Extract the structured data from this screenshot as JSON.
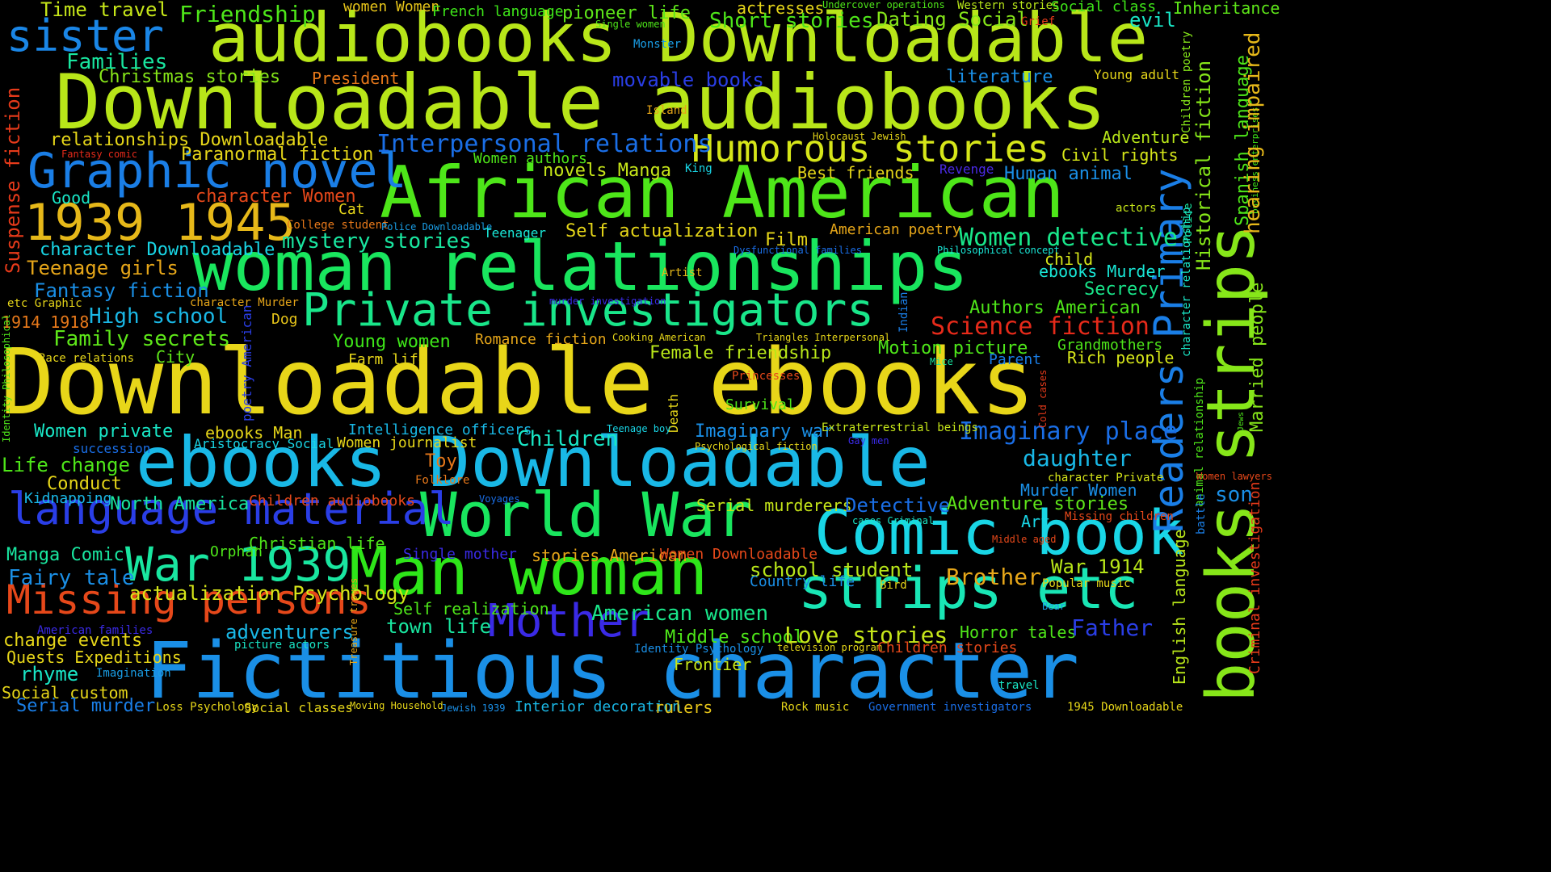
{
  "words": [
    {
      "text": "Downloadable ebooks",
      "color": "#e8d619"
    },
    {
      "text": "Downloadable audiobooks",
      "color": "#b8e619"
    },
    {
      "text": "audiobooks Downloadable",
      "color": "#b8e619"
    },
    {
      "text": "Fictitious character",
      "color": "#1a8fe6"
    },
    {
      "text": "ebooks Downloadable",
      "color": "#19b8e6"
    },
    {
      "text": "African American",
      "color": "#4ee619"
    },
    {
      "text": "woman relationships",
      "color": "#19e65e"
    },
    {
      "text": "Man woman",
      "color": "#2ee619"
    },
    {
      "text": "Comic book",
      "color": "#19d6e6"
    },
    {
      "text": "World War",
      "color": "#19e65e"
    },
    {
      "text": "strips etc",
      "color": "#19e6b5"
    },
    {
      "text": "Private investigators",
      "color": "#19e68a"
    },
    {
      "text": "Graphic novel",
      "color": "#1a7ee6"
    },
    {
      "text": "1939 1945",
      "color": "#e6b819"
    },
    {
      "text": "sister",
      "color": "#1a86e6"
    },
    {
      "text": "Humorous stories",
      "color": "#d6e619"
    },
    {
      "text": "language material",
      "color": "#2a3ee6"
    },
    {
      "text": "Missing persons",
      "color": "#e6481a"
    },
    {
      "text": "War 1939",
      "color": "#19e6a0"
    },
    {
      "text": "Mother",
      "color": "#3a2ae6"
    },
    {
      "text": "books strips",
      "color": "#86e619"
    },
    {
      "text": "Readers Primary",
      "color": "#1a7ee6"
    },
    {
      "text": "Imaginary place",
      "color": "#1a6ee6"
    },
    {
      "text": "Science fiction",
      "color": "#e62a1a"
    },
    {
      "text": "Women detective",
      "color": "#19e68a"
    },
    {
      "text": "Interpersonal relations",
      "color": "#1a6ee6"
    },
    {
      "text": "Time travel",
      "color": "#c6e619"
    },
    {
      "text": "Friendship",
      "color": "#4ee619"
    },
    {
      "text": "women Women",
      "color": "#e6c419"
    },
    {
      "text": "French language",
      "color": "#3ee619"
    },
    {
      "text": "pioneer life",
      "color": "#5ee619"
    },
    {
      "text": "actresses",
      "color": "#e6d619"
    },
    {
      "text": "Undercover operations",
      "color": "#4ee619"
    },
    {
      "text": "Western stories",
      "color": "#b8e619"
    },
    {
      "text": "Social class",
      "color": "#3ee619"
    },
    {
      "text": "Inheritance",
      "color": "#5ee619"
    },
    {
      "text": "Short stories",
      "color": "#4ee619"
    },
    {
      "text": "Dating Social",
      "color": "#86e619"
    },
    {
      "text": "Grief",
      "color": "#e63a1a"
    },
    {
      "text": "evil",
      "color": "#19e6c6"
    },
    {
      "text": "Single women",
      "color": "#4ee619"
    },
    {
      "text": "Monster",
      "color": "#1a9ee6"
    },
    {
      "text": "Families",
      "color": "#19e6a0"
    },
    {
      "text": "Christmas stories",
      "color": "#86e619"
    },
    {
      "text": "President",
      "color": "#e6781a"
    },
    {
      "text": "movable books",
      "color": "#2a3ee6"
    },
    {
      "text": "literature",
      "color": "#1a8fe6"
    },
    {
      "text": "Young adult",
      "color": "#e6d619"
    },
    {
      "text": "Children poetry",
      "color": "#86e619"
    },
    {
      "text": "Island",
      "color": "#e6a619"
    },
    {
      "text": "relationships Downloadable",
      "color": "#e6d619"
    },
    {
      "text": "Fantasy comic",
      "color": "#e62a1a"
    },
    {
      "text": "Paranormal fiction",
      "color": "#e6d619"
    },
    {
      "text": "Holocaust Jewish",
      "color": "#e6d619"
    },
    {
      "text": "Adventure",
      "color": "#b8e619"
    },
    {
      "text": "Women authors",
      "color": "#4ee619"
    },
    {
      "text": "Civil rights",
      "color": "#d6e619"
    },
    {
      "text": "Suspense fiction",
      "color": "#e63a1a"
    },
    {
      "text": "Best friends",
      "color": "#e6d619"
    },
    {
      "text": "Revenge",
      "color": "#4a2ae6"
    },
    {
      "text": "King",
      "color": "#19d6e6"
    },
    {
      "text": "novels Manga",
      "color": "#c6e619"
    },
    {
      "text": "Human animal",
      "color": "#1a8fe6"
    },
    {
      "text": "Spanish language",
      "color": "#4ee619"
    },
    {
      "text": "business enterprises",
      "color": "#3ee619"
    },
    {
      "text": "hearing impaired",
      "color": "#e6b819"
    },
    {
      "text": "Good",
      "color": "#19e6c6"
    },
    {
      "text": "character Women",
      "color": "#e6481a"
    },
    {
      "text": "Cat",
      "color": "#e6d619"
    },
    {
      "text": "actors",
      "color": "#c6e619"
    },
    {
      "text": "Historical fiction",
      "color": "#86e619"
    },
    {
      "text": "College student",
      "color": "#e6781a"
    },
    {
      "text": "Police Downloadable",
      "color": "#1a9ee6"
    },
    {
      "text": "Teenager",
      "color": "#19e6d6"
    },
    {
      "text": "Self actualization",
      "color": "#e6d619"
    },
    {
      "text": "American poetry",
      "color": "#e6a619"
    },
    {
      "text": "mystery stories",
      "color": "#19e6a0"
    },
    {
      "text": "Film",
      "color": "#e6d619"
    },
    {
      "text": "Dysfunctional families",
      "color": "#1a6ee6"
    },
    {
      "text": "Philosophical concept",
      "color": "#19e6d6"
    },
    {
      "text": "character Downloadable",
      "color": "#19d6e6"
    },
    {
      "text": "Teenage girls",
      "color": "#e6a619"
    },
    {
      "text": "Police",
      "color": "#19e6a0"
    },
    {
      "text": "child",
      "color": "#d6e619"
    },
    {
      "text": "Artist",
      "color": "#e6b819"
    },
    {
      "text": "character relationship",
      "color": "#1ae6c6"
    },
    {
      "text": "Fantasy fiction",
      "color": "#1a8fe6"
    },
    {
      "text": "ebooks Murder",
      "color": "#19e6d6"
    },
    {
      "text": "Secrecy",
      "color": "#19e68a"
    },
    {
      "text": "etc Graphic",
      "color": "#e6d619"
    },
    {
      "text": "character Murder",
      "color": "#e6a619"
    },
    {
      "text": "murder investigation",
      "color": "#3a2ae6"
    },
    {
      "text": "Indian",
      "color": "#1a7ee6"
    },
    {
      "text": "Authors American",
      "color": "#4ee619"
    },
    {
      "text": "Married people",
      "color": "#86e619"
    },
    {
      "text": "Dog",
      "color": "#e6c419"
    },
    {
      "text": "High school",
      "color": "#1ab8e6"
    },
    {
      "text": "1914 1918",
      "color": "#e6781a"
    },
    {
      "text": "poetry American",
      "color": "#2a3ee6"
    },
    {
      "text": "Family secrets",
      "color": "#5ee619"
    },
    {
      "text": "Young women",
      "color": "#3ee619"
    },
    {
      "text": "Romance fiction",
      "color": "#e6a619"
    },
    {
      "text": "Cooking American",
      "color": "#e6d619"
    },
    {
      "text": "Triangles Interpersonal",
      "color": "#e6d619"
    },
    {
      "text": "Motion picture",
      "color": "#4ee619"
    },
    {
      "text": "Grandmothers",
      "color": "#4ee619"
    },
    {
      "text": "Identity Philosophical",
      "color": "#4ee619"
    },
    {
      "text": "Race relations",
      "color": "#e6d619"
    },
    {
      "text": "City",
      "color": "#5ee619"
    },
    {
      "text": "Farm life",
      "color": "#e6d619"
    },
    {
      "text": "Female friendship",
      "color": "#b8e619"
    },
    {
      "text": "Mice",
      "color": "#19e6a0"
    },
    {
      "text": "Parent",
      "color": "#1a7ee6"
    },
    {
      "text": "Rich people",
      "color": "#d6e619"
    },
    {
      "text": "Cold cases",
      "color": "#e63a1a"
    },
    {
      "text": "Princesses",
      "color": "#e6481a"
    },
    {
      "text": "Survival",
      "color": "#4ee619"
    },
    {
      "text": "Death",
      "color": "#e6d619"
    },
    {
      "text": "Women private",
      "color": "#19e6c6"
    },
    {
      "text": "ebooks Man",
      "color": "#e6d619"
    },
    {
      "text": "Intelligence officers",
      "color": "#19b8e6"
    },
    {
      "text": "Teenage boy",
      "color": "#19d6e6"
    },
    {
      "text": "Imaginary war",
      "color": "#1a8fe6"
    },
    {
      "text": "Extraterrestrial beings",
      "color": "#c6e619"
    },
    {
      "text": "Jews",
      "color": "#4ee619"
    },
    {
      "text": "animal relationship",
      "color": "#4ee619"
    },
    {
      "text": "Criminal investigation",
      "color": "#e63a1a"
    },
    {
      "text": "succession",
      "color": "#1a6ee6"
    },
    {
      "text": "Aristocracy Social",
      "color": "#19d6e6"
    },
    {
      "text": "Women journalist",
      "color": "#e6d619"
    },
    {
      "text": "Children",
      "color": "#19e6c6"
    },
    {
      "text": "Psychological fiction",
      "color": "#e6d619"
    },
    {
      "text": "Gay men",
      "color": "#3a2ae6"
    },
    {
      "text": "daughter",
      "color": "#19b8e6"
    },
    {
      "text": "Life change",
      "color": "#4ee619"
    },
    {
      "text": "Toy",
      "color": "#e6781a"
    },
    {
      "text": "character Private",
      "color": "#d6e619"
    },
    {
      "text": "Women lawyers",
      "color": "#e6481a"
    },
    {
      "text": "Conduct",
      "color": "#e6d619"
    },
    {
      "text": "Folklore",
      "color": "#e6781a"
    },
    {
      "text": "Voyages",
      "color": "#1a6ee6"
    },
    {
      "text": "Murder Women",
      "color": "#1a8fe6"
    },
    {
      "text": "son",
      "color": "#1a8fe6"
    },
    {
      "text": "Kidnapping",
      "color": "#1ab8e6"
    },
    {
      "text": "North America",
      "color": "#19e6a0"
    },
    {
      "text": "Children audiobooks",
      "color": "#e6481a"
    },
    {
      "text": "Serial murderers",
      "color": "#c6e619"
    },
    {
      "text": "Detective",
      "color": "#1a6ee6"
    },
    {
      "text": "Adventure stories",
      "color": "#5ee619"
    },
    {
      "text": "battle",
      "color": "#1a7ee6"
    },
    {
      "text": "cases Criminal",
      "color": "#1ae6c6"
    },
    {
      "text": "Art",
      "color": "#19d6e6"
    },
    {
      "text": "Missing children",
      "color": "#e6481a"
    },
    {
      "text": "English language",
      "color": "#b8e619"
    },
    {
      "text": "Manga Comic",
      "color": "#19e6a0"
    },
    {
      "text": "Orphan",
      "color": "#4ee619"
    },
    {
      "text": "Christian life",
      "color": "#4ee619"
    },
    {
      "text": "Single mother",
      "color": "#3a2ae6"
    },
    {
      "text": "stories American",
      "color": "#e6a619"
    },
    {
      "text": "Women Downloadable",
      "color": "#e6481a"
    },
    {
      "text": "Middle aged",
      "color": "#e6481a"
    },
    {
      "text": "War 1914",
      "color": "#b8e619"
    },
    {
      "text": "Fairy tale",
      "color": "#1a8fe6"
    },
    {
      "text": "school student",
      "color": "#b8e619"
    },
    {
      "text": "Brother",
      "color": "#e6a619"
    },
    {
      "text": "actualization Psychology",
      "color": "#d6e619"
    },
    {
      "text": "Country life",
      "color": "#1a8fe6"
    },
    {
      "text": "Bird",
      "color": "#e6d619"
    },
    {
      "text": "Popular music",
      "color": "#e6d619"
    },
    {
      "text": "Self realization",
      "color": "#4ee619"
    },
    {
      "text": "town life",
      "color": "#19e6a0"
    },
    {
      "text": "American women",
      "color": "#19e68a"
    },
    {
      "text": "Bear",
      "color": "#1a9ee6"
    },
    {
      "text": "American families",
      "color": "#3a2ae6"
    },
    {
      "text": "Treasure troves",
      "color": "#e6a619"
    },
    {
      "text": "adventurers",
      "color": "#19b8e6"
    },
    {
      "text": "Middle school",
      "color": "#4ee619"
    },
    {
      "text": "Love stories",
      "color": "#c6e619"
    },
    {
      "text": "Horror tales",
      "color": "#4ee619"
    },
    {
      "text": "Father",
      "color": "#2a3ee6"
    },
    {
      "text": "change events",
      "color": "#e6d619"
    },
    {
      "text": "picture actors",
      "color": "#19e6c6"
    },
    {
      "text": "Identity Psychology",
      "color": "#1a8fe6"
    },
    {
      "text": "television program",
      "color": "#e6d619"
    },
    {
      "text": "Children stories",
      "color": "#e6481a"
    },
    {
      "text": "Quests Expeditions",
      "color": "#e6d619"
    },
    {
      "text": "rhyme",
      "color": "#19e6c6"
    },
    {
      "text": "Imagination",
      "color": "#1a9ee6"
    },
    {
      "text": "Frontier",
      "color": "#c6e619"
    },
    {
      "text": "travel",
      "color": "#19e6c6"
    },
    {
      "text": "Social custom",
      "color": "#e6d619"
    },
    {
      "text": "Serial murder",
      "color": "#1a7ee6"
    },
    {
      "text": "Loss Psychology",
      "color": "#e6d619"
    },
    {
      "text": "Social classes",
      "color": "#e6d619"
    },
    {
      "text": "Moving Household",
      "color": "#e6d619"
    },
    {
      "text": "Jewish 1939",
      "color": "#1a8fe6"
    },
    {
      "text": "Interior decoration",
      "color": "#1ab8e6"
    },
    {
      "text": "rulers",
      "color": "#e6c419"
    },
    {
      "text": "Rock music",
      "color": "#e6d619"
    },
    {
      "text": "Government investigators",
      "color": "#1a6ee6"
    },
    {
      "text": "1945 Downloadable",
      "color": "#e6d619"
    }
  ]
}
